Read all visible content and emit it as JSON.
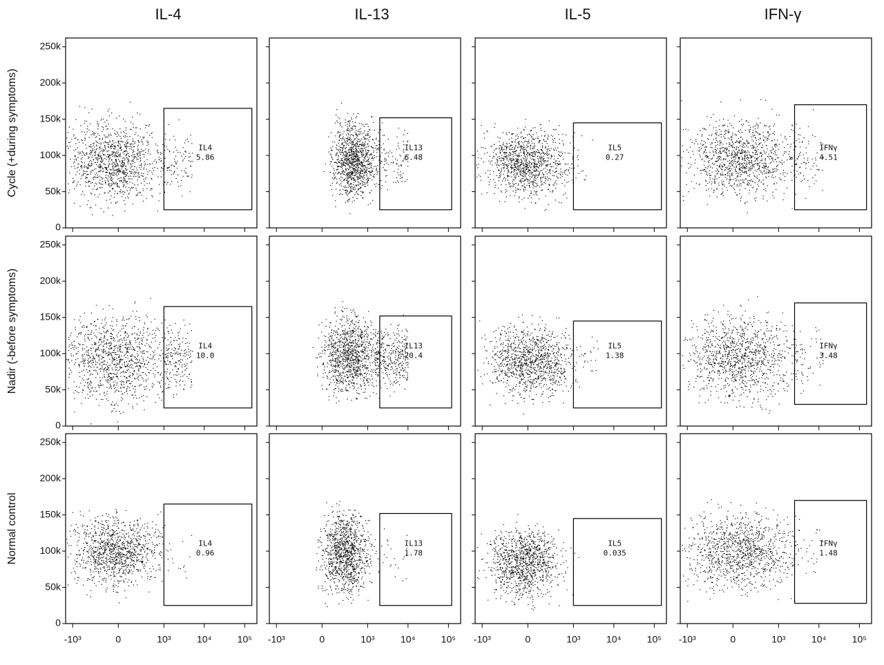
{
  "chart_data": {
    "type": "scatter",
    "columns": [
      "IL-4",
      "IL-13",
      "IL-5",
      "IFN-γ"
    ],
    "rows": [
      "Cycle (+during symptoms)",
      "Nadir (-before symptoms)",
      "Normal control"
    ],
    "xscale": "biexponential",
    "xlim": [
      -1500,
      200000
    ],
    "ylim": [
      0,
      262144
    ],
    "xticks": [
      {
        "value": -1000,
        "label": "-10³"
      },
      0,
      {
        "value": 1000,
        "label": "10³"
      },
      {
        "value": 10000,
        "label": "10⁴"
      },
      {
        "value": 100000,
        "label": "10⁵"
      }
    ],
    "yticks": [
      0,
      {
        "value": 50000,
        "label": "50k"
      },
      {
        "value": 100000,
        "label": "100k"
      },
      {
        "value": 150000,
        "label": "150k"
      },
      {
        "value": 200000,
        "label": "200k"
      },
      {
        "value": 250000,
        "label": "250k"
      }
    ],
    "color": "#000000",
    "panels": [
      [
        {
          "population": {
            "x": [
              -1500,
              800
            ],
            "y": [
              40000,
              145000
            ]
          },
          "gate": {
            "name": "IL4",
            "value": 5.86,
            "x": [
              1000,
              150000
            ],
            "y": [
              25000,
              165000
            ]
          }
        },
        {
          "population": {
            "x": [
              100,
              1500
            ],
            "y": [
              45000,
              145000
            ]
          },
          "gate": {
            "name": "IL13",
            "value": 6.48,
            "x": [
              2000,
              120000
            ],
            "y": [
              25000,
              152000
            ]
          }
        },
        {
          "population": {
            "x": [
              -700,
              700
            ],
            "y": [
              45000,
              135000
            ]
          },
          "gate": {
            "name": "IL5",
            "value": 0.27,
            "x": [
              1000,
              150000
            ],
            "y": [
              25000,
              145000
            ]
          }
        },
        {
          "population": {
            "x": [
              -1000,
              2000
            ],
            "y": [
              45000,
              150000
            ]
          },
          "gate": {
            "name": "IFNγ",
            "value": 4.51,
            "x": [
              2500,
              150000
            ],
            "y": [
              25000,
              170000
            ]
          }
        }
      ],
      [
        {
          "population": {
            "x": [
              -1500,
              1000
            ],
            "y": [
              35000,
              150000
            ]
          },
          "gate": {
            "name": "IL4",
            "value": 10.0,
            "value_label": "10.0",
            "x": [
              1000,
              150000
            ],
            "y": [
              25000,
              165000
            ]
          }
        },
        {
          "population": {
            "x": [
              0,
              1500
            ],
            "y": [
              45000,
              150000
            ]
          },
          "gate": {
            "name": "IL13",
            "value": 20.4,
            "x": [
              2000,
              120000
            ],
            "y": [
              25000,
              152000
            ]
          }
        },
        {
          "population": {
            "x": [
              -600,
              800
            ],
            "y": [
              45000,
              135000
            ]
          },
          "gate": {
            "name": "IL5",
            "value": 1.38,
            "x": [
              1000,
              150000
            ],
            "y": [
              25000,
              145000
            ]
          }
        },
        {
          "population": {
            "x": [
              -1000,
              2000
            ],
            "y": [
              40000,
              150000
            ]
          },
          "gate": {
            "name": "IFNγ",
            "value": 3.48,
            "x": [
              2500,
              150000
            ],
            "y": [
              30000,
              170000
            ]
          }
        }
      ],
      [
        {
          "population": {
            "x": [
              -1000,
              700
            ],
            "y": [
              55000,
              145000
            ]
          },
          "gate": {
            "name": "IL4",
            "value": 0.96,
            "x": [
              1000,
              150000
            ],
            "y": [
              25000,
              165000
            ]
          }
        },
        {
          "population": {
            "x": [
              0,
              1000
            ],
            "y": [
              45000,
              150000
            ]
          },
          "gate": {
            "name": "IL13",
            "value": 1.78,
            "x": [
              2000,
              120000
            ],
            "y": [
              25000,
              152000
            ]
          }
        },
        {
          "population": {
            "x": [
              -700,
              400
            ],
            "y": [
              40000,
              130000
            ]
          },
          "gate": {
            "name": "IL5",
            "value": 0.035,
            "x": [
              1000,
              150000
            ],
            "y": [
              25000,
              145000
            ]
          }
        },
        {
          "population": {
            "x": [
              -1000,
              2000
            ],
            "y": [
              50000,
              150000
            ]
          },
          "gate": {
            "name": "IFNγ",
            "value": 1.48,
            "x": [
              2500,
              150000
            ],
            "y": [
              28000,
              170000
            ]
          }
        }
      ]
    ]
  }
}
